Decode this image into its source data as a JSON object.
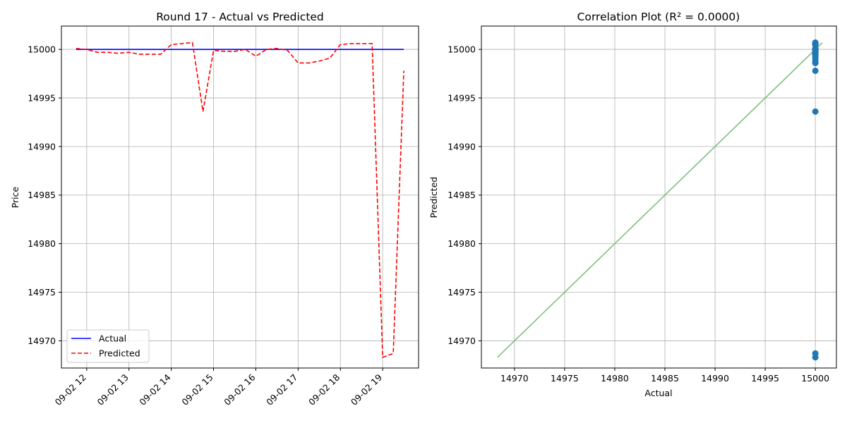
{
  "chart_data": [
    {
      "type": "line",
      "title": "Round 17 - Actual vs Predicted",
      "xlabel": "",
      "ylabel": "Price",
      "ylim": [
        14967.2,
        15002.4
      ],
      "x_ticks": [
        "09-02 12",
        "09-02 13",
        "09-02 14",
        "09-02 15",
        "09-02 16",
        "09-02 17",
        "09-02 18",
        "09-02 19"
      ],
      "y_ticks": [
        14970,
        14975,
        14980,
        14985,
        14990,
        14995,
        15000
      ],
      "grid": true,
      "legend_position": "lower-left",
      "series": [
        {
          "name": "Actual",
          "color": "#0000ff",
          "style": "solid",
          "x": [
            "09-02 11:45",
            "09-02 19:30"
          ],
          "y": [
            15000,
            15000
          ]
        },
        {
          "name": "Predicted",
          "color": "#ff0000",
          "style": "dashed",
          "x": [
            "09-02 11:45",
            "09-02 12:00",
            "09-02 12:15",
            "09-02 12:30",
            "09-02 12:45",
            "09-02 13:00",
            "09-02 13:15",
            "09-02 13:30",
            "09-02 13:45",
            "09-02 14:00",
            "09-02 14:15",
            "09-02 14:30",
            "09-02 14:45",
            "09-02 15:00",
            "09-02 15:15",
            "09-02 15:30",
            "09-02 15:45",
            "09-02 16:00",
            "09-02 16:15",
            "09-02 16:30",
            "09-02 16:45",
            "09-02 17:00",
            "09-02 17:15",
            "09-02 17:30",
            "09-02 17:45",
            "09-02 18:00",
            "09-02 18:15",
            "09-02 18:30",
            "09-02 18:45",
            "09-02 19:00",
            "09-02 19:15",
            "09-02 19:30"
          ],
          "y": [
            15000.1,
            15000.0,
            14999.7,
            14999.7,
            14999.6,
            14999.7,
            14999.5,
            14999.5,
            14999.5,
            15000.5,
            15000.6,
            15000.7,
            14993.6,
            14999.9,
            14999.8,
            14999.8,
            15000.0,
            14999.3,
            15000.0,
            15000.1,
            14999.9,
            14998.6,
            14998.6,
            14998.8,
            14999.1,
            15000.5,
            15000.6,
            15000.6,
            15000.6,
            14968.3,
            14968.7,
            14997.8
          ]
        }
      ]
    },
    {
      "type": "scatter",
      "title": "Correlation Plot (R² = 0.0000)",
      "xlabel": "Actual",
      "ylabel": "Predicted",
      "xlim": [
        14966.7,
        15002.1
      ],
      "ylim": [
        14967.2,
        15002.4
      ],
      "x_ticks": [
        14970,
        14975,
        14980,
        14985,
        14990,
        14995,
        15000
      ],
      "y_ticks": [
        14970,
        14975,
        14980,
        14985,
        14990,
        14995,
        15000
      ],
      "grid": true,
      "point_color": "#1f77b4",
      "reference_line_color": "#7fbf7f",
      "reference_line": {
        "x": [
          14968.3,
          15000.7
        ],
        "y": [
          14968.3,
          15000.7
        ]
      },
      "points": {
        "x": [
          15000,
          15000,
          15000,
          15000,
          15000,
          15000,
          15000,
          15000,
          15000,
          15000,
          15000,
          15000,
          15000,
          15000,
          15000,
          15000,
          15000,
          15000,
          15000,
          15000,
          15000,
          15000,
          15000,
          15000,
          15000,
          15000,
          15000,
          15000,
          15000,
          15000,
          15000,
          15000
        ],
        "y": [
          15000.1,
          15000.0,
          14999.7,
          14999.7,
          14999.6,
          14999.7,
          14999.5,
          14999.5,
          14999.5,
          15000.5,
          15000.6,
          15000.7,
          14993.6,
          14999.9,
          14999.8,
          14999.8,
          15000.0,
          14999.3,
          15000.0,
          15000.1,
          14999.9,
          14998.6,
          14998.6,
          14998.8,
          14999.1,
          15000.5,
          15000.6,
          15000.6,
          15000.6,
          14968.3,
          14968.7,
          14997.8
        ]
      }
    }
  ]
}
